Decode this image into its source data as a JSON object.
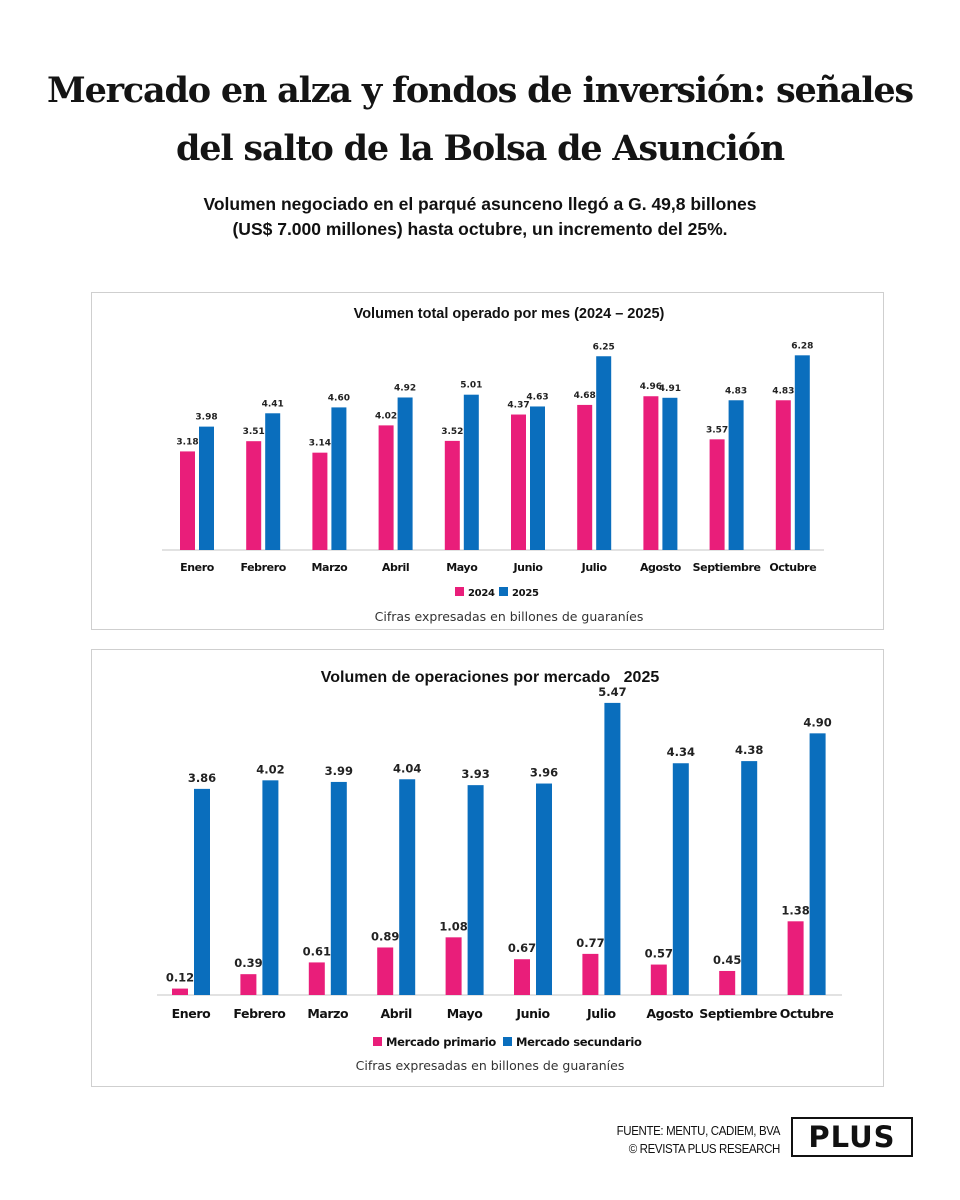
{
  "headline": {
    "line1": "Mercado en alza y fondos de inversión: señales",
    "line2": "del salto de la Bolsa de Asunción"
  },
  "subhead": {
    "line1": "Volumen negociado en el parqué asunceno llegó a G. 49,8 billones",
    "line2": "(US$ 7.000 millones) hasta octubre, un incremento del 25%."
  },
  "footer": {
    "source": "FUENTE: MENTU, CADIEM, BVA",
    "copyright": "© REVISTA PLUS RESEARCH",
    "logo": "PLUS"
  },
  "colors": {
    "series_pink": "#E91E7A",
    "series_blue": "#0A6EBD",
    "axis": "#d9d9d9"
  },
  "chart_data": [
    {
      "type": "bar",
      "title": "Volumen total operado por mes (2024 – 2025)",
      "note": "Cifras expresadas en billones de guaraníes",
      "xlabel": "",
      "ylabel": "",
      "ylim": [
        0,
        6.28
      ],
      "grid": false,
      "legend": "bottom-center",
      "categories": [
        "Enero",
        "Febrero",
        "Marzo",
        "Abril",
        "Mayo",
        "Junio",
        "Julio",
        "Agosto",
        "Septiembre",
        "Octubre"
      ],
      "series": [
        {
          "name": "2024",
          "color": "#E91E7A",
          "values": [
            3.18,
            3.51,
            3.14,
            4.02,
            3.52,
            4.37,
            4.68,
            4.96,
            3.57,
            4.83
          ]
        },
        {
          "name": "2025",
          "color": "#0A6EBD",
          "values": [
            3.98,
            4.41,
            4.6,
            4.92,
            5.01,
            4.63,
            6.25,
            4.91,
            4.83,
            6.28
          ]
        }
      ]
    },
    {
      "type": "bar",
      "title": "Volumen de operaciones por mercado   2025",
      "note": "Cifras expresadas en billones de guaraníes",
      "xlabel": "",
      "ylabel": "",
      "ylim": [
        0,
        5.47
      ],
      "grid": false,
      "legend": "bottom-center",
      "categories": [
        "Enero",
        "Febrero",
        "Marzo",
        "Abril",
        "Mayo",
        "Junio",
        "Julio",
        "Agosto",
        "Septiembre",
        "Octubre"
      ],
      "series": [
        {
          "name": "Mercado primario",
          "color": "#E91E7A",
          "values": [
            0.12,
            0.39,
            0.61,
            0.89,
            1.08,
            0.67,
            0.77,
            0.57,
            0.45,
            1.38
          ]
        },
        {
          "name": "Mercado secundario",
          "color": "#0A6EBD",
          "values": [
            3.86,
            4.02,
            3.99,
            4.04,
            3.93,
            3.96,
            5.47,
            4.34,
            4.38,
            4.9
          ]
        }
      ]
    }
  ]
}
